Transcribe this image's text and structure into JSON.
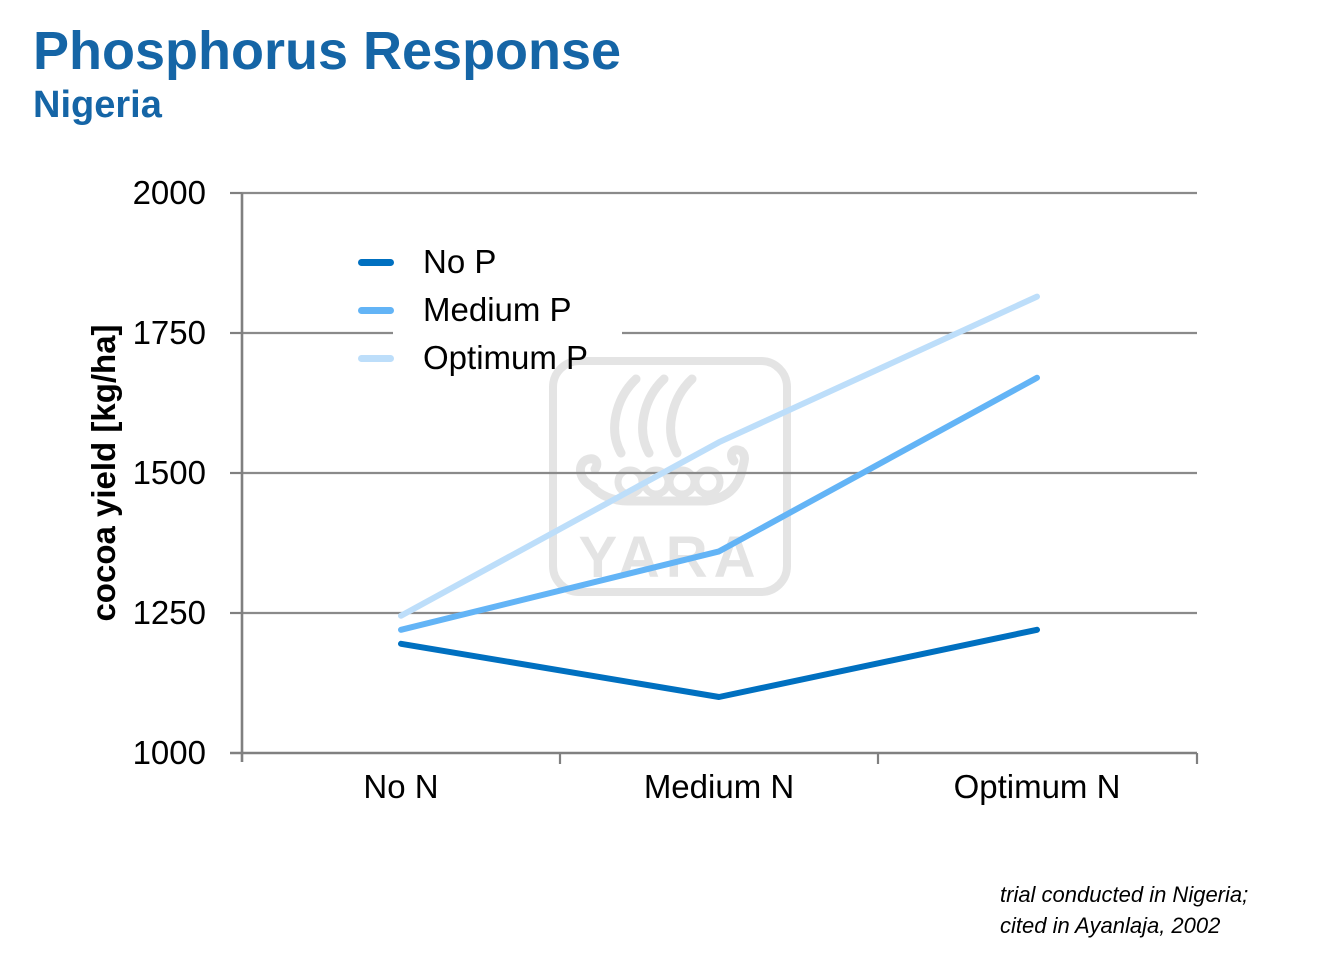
{
  "header": {
    "title": "Phosphorus Response",
    "subtitle": "Nigeria",
    "title_color": "#1565A6"
  },
  "chart_data": {
    "type": "line",
    "title": "Phosphorus Response",
    "subtitle": "Nigeria",
    "categories": [
      "No N",
      "Medium N",
      "Optimum N"
    ],
    "series": [
      {
        "name": "No P",
        "color": "#0070C0",
        "values": [
          1195,
          1100,
          1220
        ]
      },
      {
        "name": "Medium P",
        "color": "#63B4F6",
        "values": [
          1220,
          1360,
          1670
        ]
      },
      {
        "name": "Optimum P",
        "color": "#BDDEFA",
        "values": [
          1245,
          1555,
          1815
        ]
      }
    ],
    "xlabel": "",
    "ylabel": "cocoa yield [kg/ha]",
    "ylim": [
      1000,
      2000
    ],
    "yticks": [
      2000,
      1750,
      1500,
      1250,
      1000
    ],
    "grid": true,
    "gridline_color": "#8A8A8A",
    "legend_position": "upper-left-inside"
  },
  "watermark": {
    "text": "YARA"
  },
  "footnote": {
    "line1": "trial conducted in Nigeria;",
    "line2": "cited in Ayanlaja, 2002"
  }
}
